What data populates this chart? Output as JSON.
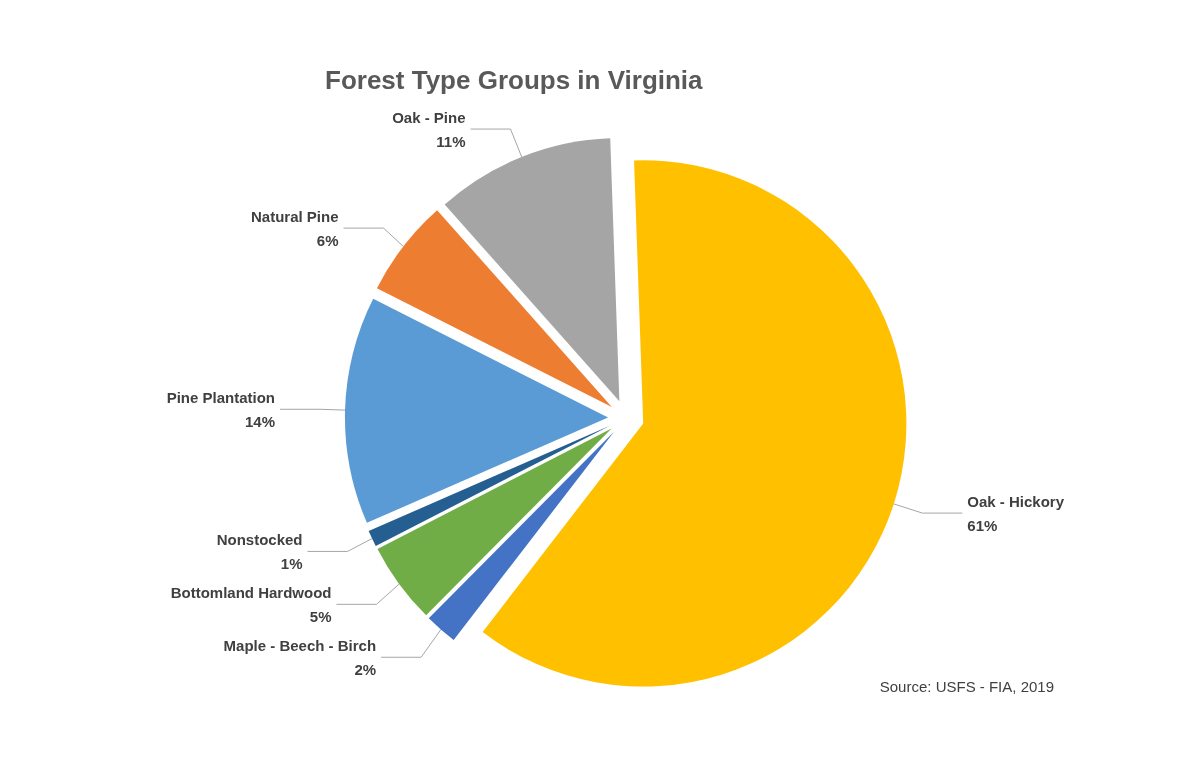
{
  "chart_data": {
    "type": "pie",
    "title": "Forest Type Groups in Virginia",
    "categories": [
      "Oak - Hickory",
      "Maple - Beech - Birch",
      "Bottomland Hardwood",
      "Nonstocked",
      "Pine Plantation",
      "Natural Pine",
      "Oak - Pine"
    ],
    "values": [
      61,
      2,
      5,
      1,
      14,
      6,
      11
    ],
    "value_labels": [
      "61%",
      "2%",
      "5%",
      "1%",
      "14%",
      "6%",
      "11%"
    ],
    "colors": [
      "#ffc000",
      "#4472c4",
      "#70ad47",
      "#255e91",
      "#5b9bd5",
      "#ed7d31",
      "#a5a5a5"
    ],
    "annotations": [
      "Source: USFS - FIA, 2019"
    ],
    "legend": false
  }
}
